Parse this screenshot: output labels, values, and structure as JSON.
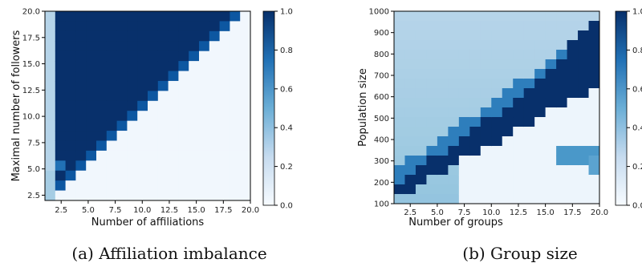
{
  "chart_data": [
    {
      "type": "heatmap",
      "caption": "(a) Affiliation imbalance",
      "xlabel": "Number of affiliations",
      "ylabel": "Maximal number of followers",
      "xlim": [
        1,
        20
      ],
      "ylim": [
        2,
        20
      ],
      "x_ticks": [
        "2.5",
        "5.0",
        "7.5",
        "10.0",
        "12.5",
        "15.0",
        "17.5",
        "20.0"
      ],
      "y_ticks": [
        "2.5",
        "5.0",
        "7.5",
        "10.0",
        "12.5",
        "15.0",
        "17.5",
        "20.0"
      ],
      "colorbar": {
        "range": [
          0,
          1
        ],
        "ticks": [
          "0.0",
          "0.2",
          "0.4",
          "0.6",
          "0.8",
          "1.0"
        ],
        "colormap": "Blues"
      },
      "description_of_values": "value ~1.0 where followers exceed affiliations (upper-left triangle), ~0.03 in lower-right triangle; first column ~0.3",
      "values_rule": {
        "high": 1.0,
        "low": 0.03,
        "first_column": 0.3
      }
    },
    {
      "type": "heatmap",
      "caption": "(b) Group size",
      "xlabel": "Number of groups",
      "ylabel": "Population size",
      "xlim": [
        1,
        20
      ],
      "ylim": [
        100,
        1000
      ],
      "x_ticks": [
        "2.5",
        "5.0",
        "7.5",
        "10.0",
        "12.5",
        "15.0",
        "17.5",
        "20.0"
      ],
      "y_ticks": [
        "100",
        "200",
        "300",
        "400",
        "500",
        "600",
        "700",
        "800",
        "900",
        "1000"
      ],
      "colorbar": {
        "range": [
          0,
          1
        ],
        "ticks": [
          "0.0",
          "0.2",
          "0.4",
          "0.6",
          "0.8",
          "1.0"
        ],
        "colormap": "Blues"
      },
      "values_rule": {
        "background": 0.4,
        "band": 1.0,
        "lower_right": 0.05
      }
    }
  ],
  "colors": {
    "min": "#f7fbff",
    "mid": "#6baed6",
    "max": "#08306b"
  }
}
